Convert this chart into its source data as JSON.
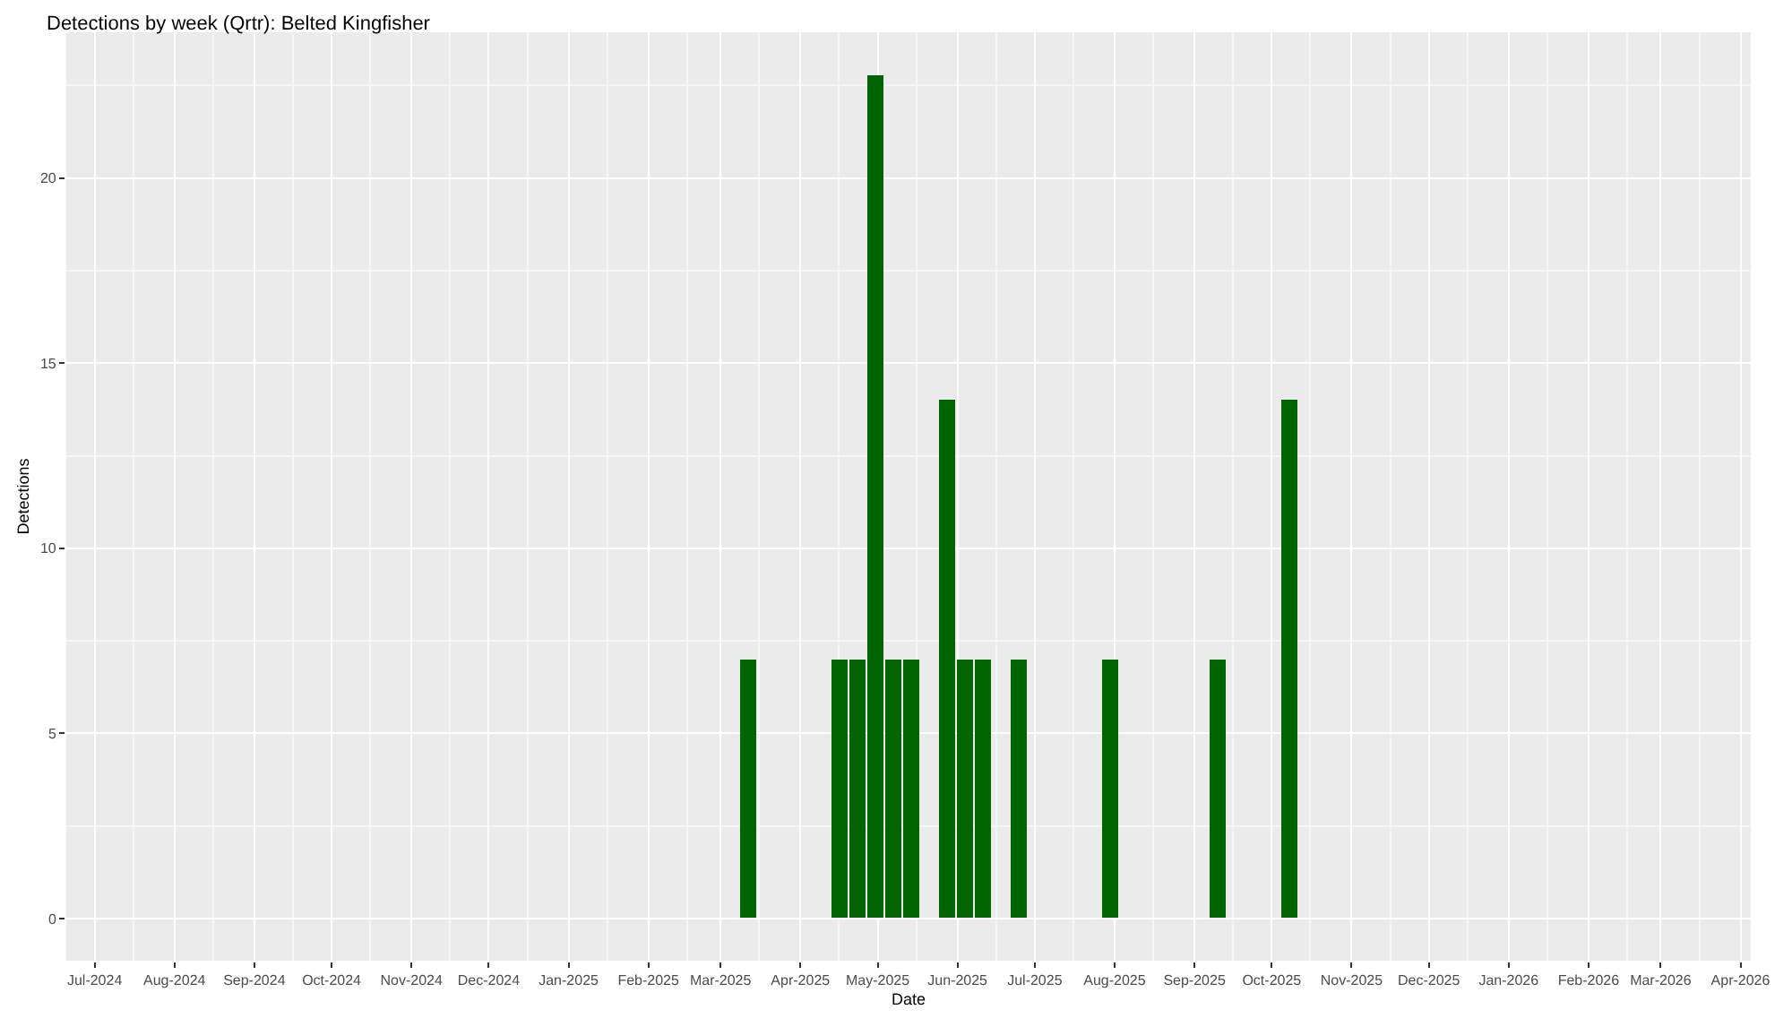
{
  "chart_data": {
    "type": "bar",
    "title": "Detections by week (Qrtr): Belted Kingfisher",
    "xlabel": "Date",
    "ylabel": "Detections",
    "x": [
      "2025-03-12",
      "2025-04-16",
      "2025-04-23",
      "2025-04-30",
      "2025-05-07",
      "2025-05-14",
      "2025-05-28",
      "2025-06-04",
      "2025-06-11",
      "2025-06-25",
      "2025-07-30",
      "2025-09-10",
      "2025-10-08"
    ],
    "values": [
      7,
      7,
      7,
      22.8,
      7,
      7,
      14,
      7,
      7,
      7,
      7,
      7,
      14
    ],
    "color": "#006400",
    "xlim": [
      "2024-06-20",
      "2026-04-05"
    ],
    "xticks": [
      {
        "value": "2024-07-01",
        "label": "Jul-2024"
      },
      {
        "value": "2024-08-01",
        "label": "Aug-2024"
      },
      {
        "value": "2024-09-01",
        "label": "Sep-2024"
      },
      {
        "value": "2024-10-01",
        "label": "Oct-2024"
      },
      {
        "value": "2024-11-01",
        "label": "Nov-2024"
      },
      {
        "value": "2024-12-01",
        "label": "Dec-2024"
      },
      {
        "value": "2025-01-01",
        "label": "Jan-2025"
      },
      {
        "value": "2025-02-01",
        "label": "Feb-2025"
      },
      {
        "value": "2025-03-01",
        "label": "Mar-2025"
      },
      {
        "value": "2025-04-01",
        "label": "Apr-2025"
      },
      {
        "value": "2025-05-01",
        "label": "May-2025"
      },
      {
        "value": "2025-06-01",
        "label": "Jun-2025"
      },
      {
        "value": "2025-07-01",
        "label": "Jul-2025"
      },
      {
        "value": "2025-08-01",
        "label": "Aug-2025"
      },
      {
        "value": "2025-09-01",
        "label": "Sep-2025"
      },
      {
        "value": "2025-10-01",
        "label": "Oct-2025"
      },
      {
        "value": "2025-11-01",
        "label": "Nov-2025"
      },
      {
        "value": "2025-12-01",
        "label": "Dec-2025"
      },
      {
        "value": "2026-01-01",
        "label": "Jan-2026"
      },
      {
        "value": "2026-02-01",
        "label": "Feb-2026"
      },
      {
        "value": "2026-03-01",
        "label": "Mar-2026"
      },
      {
        "value": "2026-04-01",
        "label": "Apr-2026"
      }
    ],
    "ylim": [
      -1.14,
      23.94
    ],
    "yticks": [
      0,
      5,
      10,
      15,
      20
    ],
    "grid": true
  }
}
